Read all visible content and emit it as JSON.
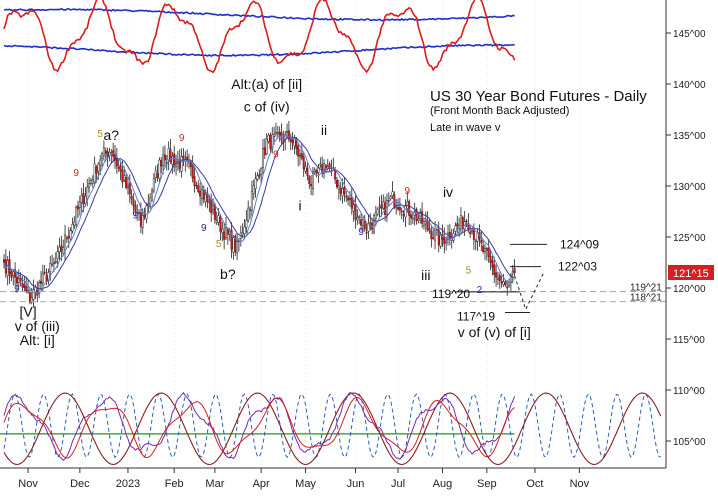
{
  "chart_data": {
    "type": "candlestick",
    "title": "US 30 Year Bond Futures - Daily",
    "subtitle": "(Front Month Back Adjusted)",
    "note": "Late in wave v",
    "current_price_label": "121^15",
    "y_axis": {
      "min": 102.5,
      "max": 150,
      "ticks": [
        "145^00",
        "140^00",
        "135^00",
        "130^00",
        "125^00",
        "120^00",
        "115^00",
        "110^00",
        "105^00"
      ],
      "tick_values": [
        145,
        140,
        135,
        130,
        125,
        120,
        115,
        110,
        105
      ],
      "faint_labels": [
        "118^21",
        "119^21"
      ]
    },
    "x_axis": {
      "labels": [
        "Nov",
        "Dec",
        "2023",
        "Feb",
        "Mar",
        "Apr",
        "May",
        "Jun",
        "Jul",
        "Aug",
        "Sep",
        "Oct",
        "Nov"
      ]
    },
    "candles": {
      "start_close": 122.5,
      "anchors": [
        [
          0,
          122.5
        ],
        [
          14,
          119.0
        ],
        [
          28,
          122.5
        ],
        [
          52,
          132.8
        ],
        [
          58,
          133.6
        ],
        [
          74,
          126.2
        ],
        [
          86,
          133.2
        ],
        [
          100,
          131.8
        ],
        [
          118,
          125.8
        ],
        [
          126,
          123.8
        ],
        [
          142,
          134.3
        ],
        [
          155,
          134.8
        ],
        [
          166,
          130.3
        ],
        [
          174,
          132.2
        ],
        [
          186,
          128.6
        ],
        [
          196,
          125.8
        ],
        [
          210,
          128.8
        ],
        [
          222,
          127.2
        ],
        [
          236,
          124.6
        ],
        [
          250,
          126.8
        ],
        [
          260,
          123.3
        ],
        [
          266,
          121.2
        ],
        [
          272,
          119.8
        ],
        [
          276,
          121.5
        ]
      ]
    },
    "price_levels": [
      {
        "label": "124^09",
        "value": 124.28
      },
      {
        "label": "122^03",
        "value": 122.1
      },
      {
        "label": "117^19",
        "value": 117.6
      },
      {
        "label": "119^20",
        "value": 119.62
      }
    ],
    "reference_lines": [
      {
        "label": "118^21",
        "value": 118.66
      },
      {
        "label": "119^21",
        "value": 119.66
      }
    ],
    "wave_labels": [
      {
        "text": "a?",
        "x": 58,
        "y": 134.5
      },
      {
        "text": "Alt:(a) of [ii]",
        "x": 142,
        "y": 139.5
      },
      {
        "text": "c of (iv)",
        "x": 142,
        "y": 137.3
      },
      {
        "text": "ii",
        "x": 173,
        "y": 135.0
      },
      {
        "text": "i",
        "x": 160,
        "y": 127.6
      },
      {
        "text": "iv",
        "x": 240,
        "y": 128.9
      },
      {
        "text": "iii",
        "x": 228,
        "y": 120.8
      },
      {
        "text": "b?",
        "x": 121,
        "y": 120.9
      },
      {
        "text": "[V]",
        "x": 13,
        "y": 117.2
      },
      {
        "text": "v of (iii)",
        "x": 18,
        "y": 115.8
      },
      {
        "text": "Alt: [i]",
        "x": 18,
        "y": 114.4
      },
      {
        "text": "v of (v) of [i]",
        "x": 265,
        "y": 115.2
      }
    ],
    "count_numbers": [
      {
        "text": "9",
        "x": 7,
        "y": 119.6,
        "color": "#1f1fa8"
      },
      {
        "text": "9",
        "x": 39,
        "y": 131.0,
        "color": "#d42020"
      },
      {
        "text": "5",
        "x": 52,
        "y": 134.8,
        "color": "#b08a20"
      },
      {
        "text": "9",
        "x": 71,
        "y": 126.8,
        "color": "#1f1fa8"
      },
      {
        "text": "9",
        "x": 96,
        "y": 134.4,
        "color": "#d42020"
      },
      {
        "text": "9",
        "x": 108,
        "y": 125.6,
        "color": "#1f1fa8"
      },
      {
        "text": "5",
        "x": 116,
        "y": 124.0,
        "color": "#b08a20"
      },
      {
        "text": "9",
        "x": 147,
        "y": 132.8,
        "color": "#d42020"
      },
      {
        "text": "9",
        "x": 193,
        "y": 125.2,
        "color": "#1f1fa8"
      },
      {
        "text": "9",
        "x": 218,
        "y": 129.2,
        "color": "#d42020"
      },
      {
        "text": "5",
        "x": 251,
        "y": 121.4,
        "color": "#b08a20"
      },
      {
        "text": "2",
        "x": 257,
        "y": 119.5,
        "color": "#1f1fa8"
      }
    ],
    "projection": {
      "points": [
        [
          276,
          121.2
        ],
        [
          282,
          117.9
        ],
        [
          292,
          121.6
        ]
      ]
    },
    "oscillator_panel": {
      "y_range": [
        102.5,
        112
      ],
      "green_level": 105.7,
      "cycles": [
        {
          "color": "#2b5fb8",
          "style": "dashed",
          "period": 15.5,
          "phase": 2,
          "amplitude": 3.1,
          "center": 106.5
        },
        {
          "color": "#8a1f1f",
          "style": "solid",
          "period": 52,
          "phase": 20,
          "amplitude": 3.5,
          "center": 106.2
        }
      ]
    },
    "top_panel": {
      "y_range": [
        140.5,
        150.5
      ]
    }
  }
}
